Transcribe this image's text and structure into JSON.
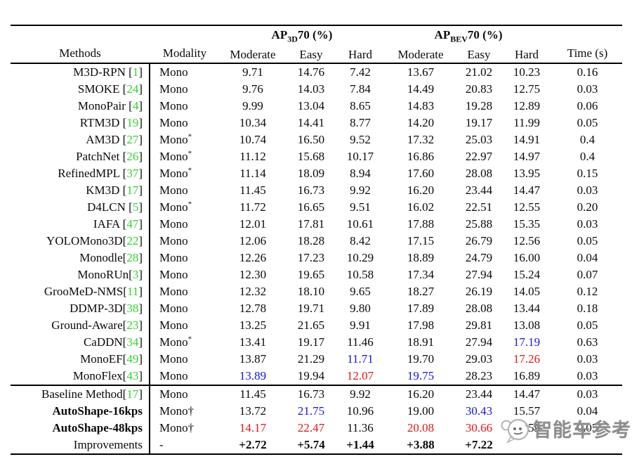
{
  "colors": {
    "citation_green": "#2fd52f",
    "highlight_blue": "#1414dd",
    "highlight_red": "#e41616"
  },
  "table": {
    "header": {
      "methods": "Methods",
      "modality": "Modality",
      "ap3d": {
        "prefix": "AP",
        "sub": "3D",
        "suffix": "70 (%)"
      },
      "apbev": {
        "prefix": "AP",
        "sub": "BEV",
        "suffix": "70 (%)"
      },
      "subcols": [
        "Moderate",
        "Easy",
        "Hard"
      ],
      "time": "Time (s)"
    },
    "rows": [
      {
        "name": "M3D-RPN ",
        "cite": "1",
        "modality": "Mono",
        "vals": [
          "9.71",
          "14.76",
          "7.42",
          "13.67",
          "21.02",
          "10.23",
          "0.16"
        ]
      },
      {
        "name": "SMOKE ",
        "cite": "24",
        "modality": "Mono",
        "vals": [
          "9.76",
          "14.03",
          "7.84",
          "14.49",
          "20.83",
          "12.75",
          "0.03"
        ]
      },
      {
        "name": "MonoPair ",
        "cite": "4",
        "modality": "Mono",
        "vals": [
          "9.99",
          "13.04",
          "8.65",
          "14.83",
          "19.28",
          "12.89",
          "0.06"
        ]
      },
      {
        "name": "RTM3D ",
        "cite": "19",
        "modality": "Mono",
        "vals": [
          "10.34",
          "14.41",
          "8.77",
          "14.20",
          "19.17",
          "11.99",
          "0.05"
        ]
      },
      {
        "name": "AM3D ",
        "cite": "27",
        "modality": "Mono",
        "sup": "*",
        "vals": [
          "10.74",
          "16.50",
          "9.52",
          "17.32",
          "25.03",
          "14.91",
          "0.4"
        ]
      },
      {
        "name": "PatchNet ",
        "cite": "26",
        "modality": "Mono",
        "sup": "*",
        "vals": [
          "11.12",
          "15.68",
          "10.17",
          "16.86",
          "22.97",
          "14.97",
          "0.4"
        ]
      },
      {
        "name": "RefinedMPL ",
        "cite": "37",
        "modality": "Mono",
        "sup": "*",
        "vals": [
          "11.14",
          "18.09",
          "8.94",
          "17.60",
          "28.08",
          "13.95",
          "0.15"
        ]
      },
      {
        "name": "KM3D ",
        "cite": "17",
        "modality": "Mono",
        "vals": [
          "11.45",
          "16.73",
          "9.92",
          "16.20",
          "23.44",
          "14.47",
          "0.03"
        ]
      },
      {
        "name": "D4LCN ",
        "cite": "5",
        "modality": "Mono",
        "sup": "*",
        "vals": [
          "11.72",
          "16.65",
          "9.51",
          "16.02",
          "22.51",
          "12.55",
          "0.20"
        ]
      },
      {
        "name": "IAFA ",
        "cite": "47",
        "modality": "Mono",
        "vals": [
          "12.01",
          "17.81",
          "10.61",
          "17.88",
          "25.88",
          "15.35",
          "0.03"
        ]
      },
      {
        "name": "YOLOMono3D",
        "cite": "22",
        "modality": "Mono",
        "vals": [
          "12.06",
          "18.28",
          "8.42",
          "17.15",
          "26.79",
          "12.56",
          "0.05"
        ]
      },
      {
        "name": "Monodle",
        "cite": "28",
        "modality": "Mono",
        "vals": [
          "12.26",
          "17.23",
          "10.29",
          "18.89",
          "24.79",
          "16.00",
          "0.04"
        ]
      },
      {
        "name": "MonoRUn",
        "cite": "3",
        "modality": "Mono",
        "vals": [
          "12.30",
          "19.65",
          "10.58",
          "17.34",
          "27.94",
          "15.24",
          "0.07"
        ]
      },
      {
        "name": "GrooMeD-NMS",
        "cite": "11",
        "modality": "Mono",
        "vals": [
          "12.32",
          "18.10",
          "9.65",
          "18.27",
          "26.19",
          "14.05",
          "0.12"
        ]
      },
      {
        "name": "DDMP-3D",
        "cite": "38",
        "modality": "Mono",
        "vals": [
          "12.78",
          "19.71",
          "9.80",
          "17.89",
          "28.08",
          "13.44",
          "0.18"
        ]
      },
      {
        "name": "Ground-Aware",
        "cite": "23",
        "modality": "Mono",
        "vals": [
          "13.25",
          "21.65",
          "9.91",
          "17.98",
          "29.81",
          "13.08",
          "0.05"
        ]
      },
      {
        "name": "CaDDN",
        "cite": "34",
        "modality": "Mono",
        "sup": "*",
        "vals": [
          "13.41",
          "19.17",
          "11.46",
          "18.91",
          "27.94",
          "17.19",
          "0.63"
        ],
        "styles": {
          "5": "blue"
        }
      },
      {
        "name": "MonoEF",
        "cite": "49",
        "modality": "Mono",
        "vals": [
          "13.87",
          "21.29",
          "11.71",
          "19.70",
          "29.03",
          "17.26",
          "0.03"
        ],
        "styles": {
          "2": "blue",
          "5": "red"
        }
      },
      {
        "name": "MonoFlex",
        "cite": "43",
        "modality": "Mono",
        "vals": [
          "13.89",
          "19.94",
          "12.07",
          "19.75",
          "28.23",
          "16.89",
          "0.03"
        ],
        "styles": {
          "0": "blue",
          "2": "red",
          "3": "blue"
        }
      },
      {
        "name": "Baseline Method",
        "cite": "17",
        "modality": "Mono",
        "section": true,
        "vals": [
          "11.45",
          "16.73",
          "9.92",
          "16.20",
          "23.44",
          "14.47",
          "0.03"
        ]
      },
      {
        "name": "AutoShape-16kps",
        "name_bold": true,
        "modality": "Mono",
        "suffix": "†",
        "vals": [
          "13.72",
          "21.75",
          "10.96",
          "19.00",
          "30.43",
          "15.57",
          "0.04"
        ],
        "styles": {
          "1": "blue",
          "4": "blue"
        }
      },
      {
        "name": "AutoShape-48kps",
        "name_bold": true,
        "modality": "Mono",
        "suffix": "†",
        "vals": [
          "14.17",
          "22.47",
          "11.36",
          "20.08",
          "30.66",
          "15.59",
          "0.05"
        ],
        "styles": {
          "0": "red",
          "1": "red",
          "3": "red",
          "4": "red"
        }
      },
      {
        "name": "Improvements",
        "modality": "-",
        "vals": [
          "+2.72",
          "+5.74",
          "+1.44",
          "+3.88",
          "+7.22",
          "",
          ""
        ],
        "styles": {
          "0": "bold",
          "1": "bold",
          "2": "bold",
          "3": "bold",
          "4": "bold"
        }
      }
    ]
  },
  "watermark": {
    "text": "智能车参考"
  }
}
